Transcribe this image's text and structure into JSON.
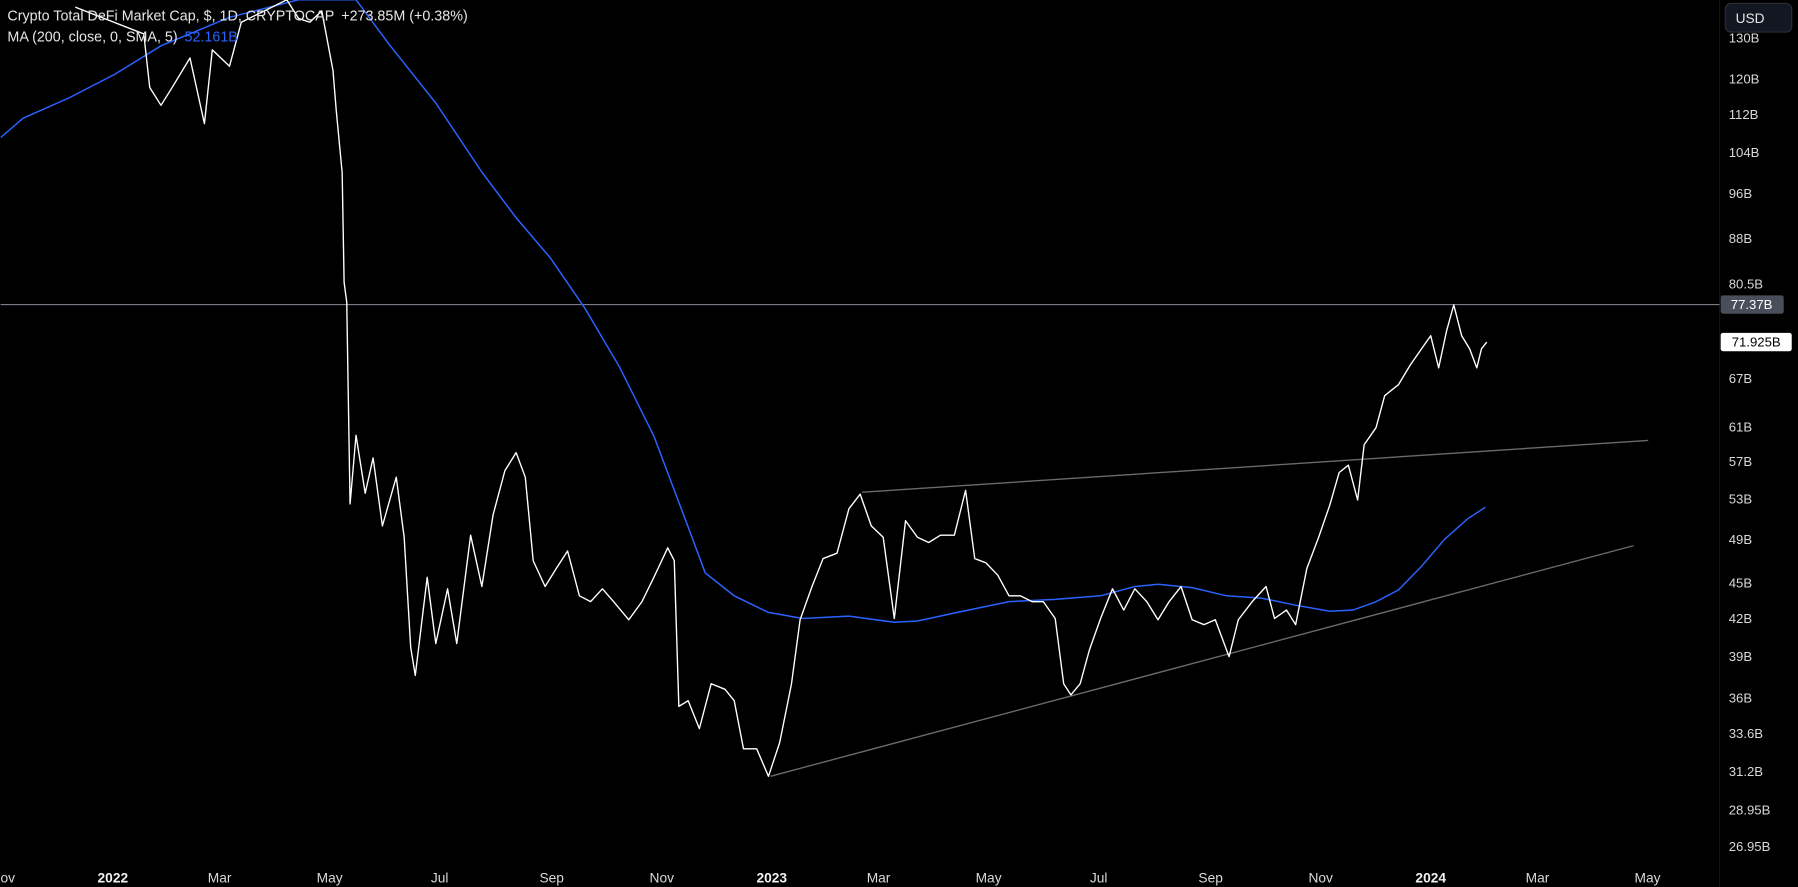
{
  "legend": {
    "title": "Crypto Total DeFi Market Cap, $, 1D, CRYPTOCAP",
    "change": "+273.85M (+0.38%)",
    "ma_label": "MA (200, close, 0, SMA, 5)",
    "ma_value": "52.161B"
  },
  "currency_button": "USD",
  "colors": {
    "price": "#ffffff",
    "ma": "#2962ff",
    "trend": "#6a6a6a",
    "hline": "#787b86",
    "background": "#000000"
  },
  "chart_data": {
    "type": "line",
    "title": "Crypto Total DeFi Market Cap, $, 1D, CRYPTOCAP",
    "y_scale": "log",
    "ylim": [
      25.5,
      140
    ],
    "xlim": [
      2021.83,
      2024.37
    ],
    "y_ticks": [
      "130B",
      "120B",
      "112B",
      "104B",
      "96B",
      "88B",
      "80.5B",
      "67B",
      "61B",
      "57B",
      "53B",
      "49B",
      "45B",
      "42B",
      "39B",
      "36B",
      "33.6B",
      "31.2B",
      "28.95B",
      "26.95B"
    ],
    "y_tick_values": [
      130,
      120,
      112,
      104,
      96,
      88,
      80.5,
      67,
      61,
      57,
      53,
      49,
      45,
      42,
      39,
      36,
      33.6,
      31.2,
      28.95,
      26.95
    ],
    "x_ticks": [
      {
        "label": "Nov",
        "t": 2021.833
      },
      {
        "label": "2022",
        "t": 2022.0,
        "year": true
      },
      {
        "label": "Mar",
        "t": 2022.162
      },
      {
        "label": "May",
        "t": 2022.329
      },
      {
        "label": "Jul",
        "t": 2022.496
      },
      {
        "label": "Sep",
        "t": 2022.666
      },
      {
        "label": "Nov",
        "t": 2022.833
      },
      {
        "label": "2023",
        "t": 2023.0,
        "year": true
      },
      {
        "label": "Mar",
        "t": 2023.162
      },
      {
        "label": "May",
        "t": 2023.329
      },
      {
        "label": "Jul",
        "t": 2023.496
      },
      {
        "label": "Sep",
        "t": 2023.666
      },
      {
        "label": "Nov",
        "t": 2023.833
      },
      {
        "label": "2024",
        "t": 2024.0,
        "year": true
      },
      {
        "label": "Mar",
        "t": 2024.162
      },
      {
        "label": "May",
        "t": 2024.329
      }
    ],
    "price_labels": {
      "high_line": "77.37B",
      "last": "71.925B"
    },
    "high_line_value": 77.37,
    "last_value": 71.925,
    "series": [
      {
        "name": "Crypto Total DeFi Market Cap",
        "unit": "B USD",
        "points": [
          [
            2021.943,
            138
          ],
          [
            2022.047,
            131
          ],
          [
            2022.056,
            118
          ],
          [
            2022.073,
            114
          ],
          [
            2022.09,
            118
          ],
          [
            2022.117,
            125
          ],
          [
            2022.139,
            110
          ],
          [
            2022.151,
            127
          ],
          [
            2022.177,
            123
          ],
          [
            2022.195,
            134
          ],
          [
            2022.23,
            137
          ],
          [
            2022.264,
            140
          ],
          [
            2022.282,
            135
          ],
          [
            2022.299,
            134
          ],
          [
            2022.317,
            137
          ],
          [
            2022.334,
            122
          ],
          [
            2022.339,
            113
          ],
          [
            2022.348,
            100
          ],
          [
            2022.351,
            80.8
          ],
          [
            2022.355,
            77.7
          ],
          [
            2022.36,
            52.5
          ],
          [
            2022.369,
            60
          ],
          [
            2022.383,
            53.6
          ],
          [
            2022.395,
            57.4
          ],
          [
            2022.409,
            50.3
          ],
          [
            2022.43,
            55.3
          ],
          [
            2022.442,
            49.2
          ],
          [
            2022.452,
            39.7
          ],
          [
            2022.459,
            37.6
          ],
          [
            2022.477,
            45.5
          ],
          [
            2022.49,
            40
          ],
          [
            2022.508,
            44.5
          ],
          [
            2022.522,
            40
          ],
          [
            2022.543,
            49.4
          ],
          [
            2022.56,
            44.7
          ],
          [
            2022.577,
            51.4
          ],
          [
            2022.595,
            56
          ],
          [
            2022.612,
            58
          ],
          [
            2022.626,
            55.3
          ],
          [
            2022.638,
            47
          ],
          [
            2022.656,
            44.7
          ],
          [
            2022.673,
            46.3
          ],
          [
            2022.69,
            47.9
          ],
          [
            2022.708,
            43.9
          ],
          [
            2022.725,
            43.4
          ],
          [
            2022.743,
            44.5
          ],
          [
            2022.76,
            43.4
          ],
          [
            2022.783,
            41.9
          ],
          [
            2022.803,
            43.4
          ],
          [
            2022.821,
            45.5
          ],
          [
            2022.842,
            48.2
          ],
          [
            2022.852,
            47
          ],
          [
            2022.859,
            35.4
          ],
          [
            2022.873,
            35.8
          ],
          [
            2022.89,
            33.9
          ],
          [
            2022.908,
            37
          ],
          [
            2022.929,
            36.6
          ],
          [
            2022.943,
            35.8
          ],
          [
            2022.957,
            32.6
          ],
          [
            2022.977,
            32.6
          ],
          [
            2022.995,
            30.9
          ],
          [
            2023.012,
            33
          ],
          [
            2023.03,
            37
          ],
          [
            2023.043,
            41.9
          ],
          [
            2023.061,
            44.7
          ],
          [
            2023.078,
            47.2
          ],
          [
            2023.099,
            47.7
          ],
          [
            2023.117,
            52
          ],
          [
            2023.134,
            53.5
          ],
          [
            2023.151,
            50.3
          ],
          [
            2023.169,
            49.2
          ],
          [
            2023.186,
            42
          ],
          [
            2023.203,
            50.8
          ],
          [
            2023.221,
            49.2
          ],
          [
            2023.238,
            48.7
          ],
          [
            2023.256,
            49.4
          ],
          [
            2023.277,
            49.4
          ],
          [
            2023.294,
            53.9
          ],
          [
            2023.308,
            47.2
          ],
          [
            2023.325,
            46.8
          ],
          [
            2023.343,
            45.7
          ],
          [
            2023.36,
            43.9
          ],
          [
            2023.377,
            43.9
          ],
          [
            2023.395,
            43.4
          ],
          [
            2023.412,
            43.4
          ],
          [
            2023.43,
            42
          ],
          [
            2023.443,
            37
          ],
          [
            2023.454,
            36.2
          ],
          [
            2023.468,
            37
          ],
          [
            2023.482,
            39.5
          ],
          [
            2023.499,
            42
          ],
          [
            2023.517,
            44.5
          ],
          [
            2023.534,
            42.7
          ],
          [
            2023.551,
            44.5
          ],
          [
            2023.569,
            43.4
          ],
          [
            2023.586,
            41.9
          ],
          [
            2023.603,
            43.4
          ],
          [
            2023.621,
            44.7
          ],
          [
            2023.638,
            41.9
          ],
          [
            2023.656,
            41.5
          ],
          [
            2023.673,
            41.9
          ],
          [
            2023.694,
            39
          ],
          [
            2023.708,
            41.9
          ],
          [
            2023.729,
            43.4
          ],
          [
            2023.75,
            44.7
          ],
          [
            2023.763,
            42
          ],
          [
            2023.781,
            42.7
          ],
          [
            2023.795,
            41.5
          ],
          [
            2023.812,
            46.3
          ],
          [
            2023.83,
            49.2
          ],
          [
            2023.847,
            52.4
          ],
          [
            2023.861,
            55.8
          ],
          [
            2023.875,
            56.6
          ],
          [
            2023.889,
            52.9
          ],
          [
            2023.899,
            58.9
          ],
          [
            2023.917,
            60.9
          ],
          [
            2023.93,
            64.8
          ],
          [
            2023.951,
            66.2
          ],
          [
            2023.969,
            68.8
          ],
          [
            2023.986,
            71
          ],
          [
            2024.0,
            72.8
          ],
          [
            2024.012,
            68.4
          ],
          [
            2024.024,
            73.5
          ],
          [
            2024.035,
            77.3
          ],
          [
            2024.047,
            72.8
          ],
          [
            2024.059,
            71
          ],
          [
            2024.07,
            68.4
          ],
          [
            2024.077,
            71
          ],
          [
            2024.085,
            71.925
          ]
        ]
      },
      {
        "name": "MA (200, close, 0, SMA, 5)",
        "unit": "B USD",
        "points": [
          [
            2021.83,
            107.1
          ],
          [
            2021.864,
            111.2
          ],
          [
            2021.934,
            115.7
          ],
          [
            2022.003,
            121.1
          ],
          [
            2022.073,
            128
          ],
          [
            2022.177,
            135.3
          ],
          [
            2022.282,
            140
          ],
          [
            2022.369,
            140
          ],
          [
            2022.421,
            128
          ],
          [
            2022.49,
            114.5
          ],
          [
            2022.56,
            100.1
          ],
          [
            2022.612,
            91.6
          ],
          [
            2022.664,
            84.7
          ],
          [
            2022.717,
            76.7
          ],
          [
            2022.769,
            68.5
          ],
          [
            2022.821,
            59.9
          ],
          [
            2022.873,
            50.2
          ],
          [
            2022.899,
            45.9
          ],
          [
            2022.943,
            43.9
          ],
          [
            2022.995,
            42.5
          ],
          [
            2023.047,
            42.0
          ],
          [
            2023.117,
            42.2
          ],
          [
            2023.186,
            41.7
          ],
          [
            2023.221,
            41.8
          ],
          [
            2023.29,
            42.6
          ],
          [
            2023.36,
            43.4
          ],
          [
            2023.43,
            43.6
          ],
          [
            2023.499,
            43.9
          ],
          [
            2023.551,
            44.7
          ],
          [
            2023.586,
            44.9
          ],
          [
            2023.638,
            44.6
          ],
          [
            2023.69,
            43.9
          ],
          [
            2023.743,
            43.7
          ],
          [
            2023.795,
            43.1
          ],
          [
            2023.847,
            42.6
          ],
          [
            2023.882,
            42.7
          ],
          [
            2023.917,
            43.4
          ],
          [
            2023.951,
            44.4
          ],
          [
            2023.986,
            46.5
          ],
          [
            2024.021,
            49.0
          ],
          [
            2024.056,
            51.0
          ],
          [
            2024.083,
            52.16
          ]
        ]
      }
    ],
    "trendlines": [
      {
        "name": "upper-resistance",
        "from": [
          2023.137,
          53.7
        ],
        "to": [
          2024.33,
          59.4
        ]
      },
      {
        "name": "lower-support",
        "from": [
          2022.998,
          30.9
        ],
        "to": [
          2024.308,
          48.4
        ]
      }
    ]
  }
}
